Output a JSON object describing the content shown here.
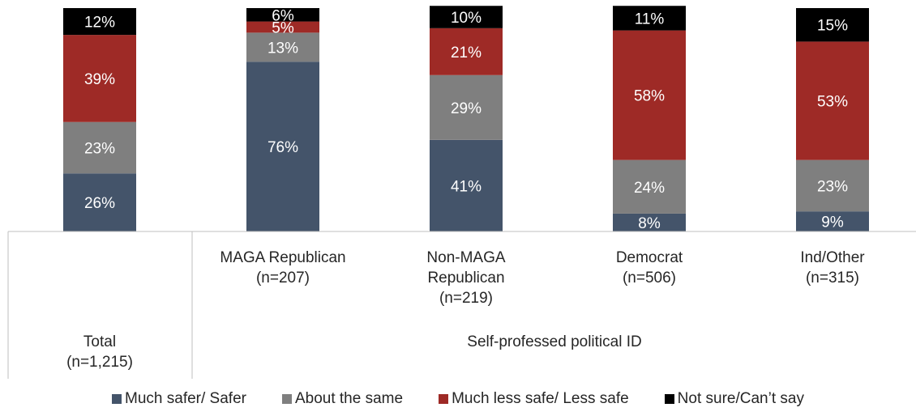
{
  "chart_data": {
    "type": "bar",
    "stacked": true,
    "orientation": "vertical",
    "categories": [
      [
        "Total",
        "(n=1,215)"
      ],
      [
        "MAGA Republican",
        "(n=207)"
      ],
      [
        "Non-MAGA",
        "Republican",
        "(n=219)"
      ],
      [
        "Democrat",
        "(n=506)"
      ],
      [
        "Ind/Other",
        "(n=315)"
      ]
    ],
    "group_label": "Self-professed political ID",
    "series": [
      {
        "name": "Much safer/ Safer",
        "color": "#44546a",
        "label_color": "#ffffff",
        "values": [
          26,
          76,
          41,
          8,
          9
        ],
        "labels": [
          "26%",
          "76%",
          "41%",
          "8%",
          "9%"
        ]
      },
      {
        "name": "About the same",
        "color": "#7f7f7f",
        "label_color": "#ffffff",
        "values": [
          23,
          13,
          29,
          24,
          23
        ],
        "labels": [
          "23%",
          "13%",
          "29%",
          "24%",
          "23%"
        ]
      },
      {
        "name": "Much less safe/ Less safe",
        "color": "#9e2a26",
        "label_color": "#ffffff",
        "values": [
          39,
          5,
          21,
          58,
          53
        ],
        "labels": [
          "39%",
          "5%",
          "21%",
          "58%",
          "53%"
        ]
      },
      {
        "name": "Not sure/Can’t say",
        "color": "#000000",
        "label_color": "#ffffff",
        "values": [
          12,
          6,
          10,
          11,
          15
        ],
        "labels": [
          "12%",
          "6%",
          "10%",
          "11%",
          "15%"
        ]
      }
    ],
    "ylim": [
      0,
      100
    ],
    "legend_position": "bottom",
    "grid": false
  }
}
